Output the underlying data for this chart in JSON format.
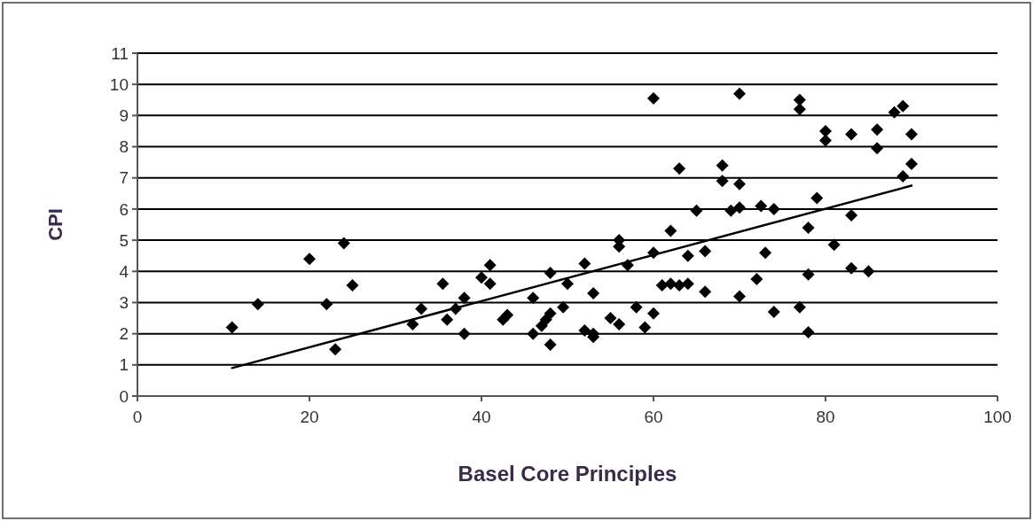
{
  "chart_data": {
    "type": "scatter",
    "xlabel": "Basel Core Principles",
    "ylabel": "CPI",
    "xlim": [
      0,
      100
    ],
    "xticks": [
      0,
      20,
      40,
      60,
      80,
      100
    ],
    "ylim": [
      0,
      11
    ],
    "yticks": [
      0,
      1,
      2,
      3,
      4,
      5,
      6,
      7,
      8,
      9,
      10,
      11
    ],
    "grid": "y",
    "series": [
      {
        "marker": "diamond",
        "color": "#000000",
        "x": [
          11,
          14,
          20,
          22,
          24,
          23,
          25,
          32,
          33,
          35.5,
          36,
          37,
          38,
          38,
          40,
          41,
          41,
          42.5,
          43,
          46,
          46,
          47,
          47.5,
          48,
          48,
          48,
          49.5,
          50,
          52,
          52,
          53,
          53,
          53,
          55,
          56,
          56,
          56,
          57,
          58,
          59,
          60,
          60,
          60,
          61,
          62,
          62,
          63,
          63,
          64,
          64,
          65,
          66,
          66,
          68,
          68,
          69,
          70,
          70,
          70,
          70,
          72,
          72.5,
          73,
          74,
          74,
          77,
          77,
          77,
          78,
          78,
          78,
          79,
          80,
          80,
          81,
          83,
          83,
          83,
          85,
          86,
          86,
          88,
          89,
          89,
          90,
          90
        ],
        "values": [
          2.2,
          2.95,
          4.4,
          2.95,
          4.9,
          1.5,
          3.55,
          2.3,
          2.8,
          3.6,
          2.45,
          2.8,
          3.15,
          2.0,
          3.8,
          4.2,
          3.6,
          2.45,
          2.6,
          3.15,
          2.0,
          2.25,
          2.45,
          1.65,
          2.65,
          3.95,
          2.85,
          3.6,
          4.25,
          2.1,
          2.0,
          3.3,
          1.9,
          2.5,
          5.0,
          4.8,
          2.3,
          4.2,
          2.85,
          2.2,
          2.65,
          9.55,
          4.6,
          3.55,
          3.6,
          5.3,
          7.3,
          3.55,
          3.6,
          4.5,
          5.95,
          4.65,
          3.35,
          7.4,
          6.9,
          5.95,
          6.05,
          6.8,
          3.2,
          9.7,
          3.75,
          6.1,
          4.6,
          6.0,
          2.7,
          9.5,
          9.2,
          2.85,
          5.4,
          2.05,
          3.9,
          6.35,
          8.5,
          8.2,
          4.85,
          8.4,
          5.8,
          4.1,
          4.0,
          8.55,
          7.95,
          9.1,
          9.3,
          7.05,
          8.4,
          7.45
        ]
      },
      {
        "type": "line",
        "marker": "none",
        "color": "#000000",
        "x": [
          11,
          90
        ],
        "values": [
          0.9,
          6.75
        ]
      }
    ]
  }
}
